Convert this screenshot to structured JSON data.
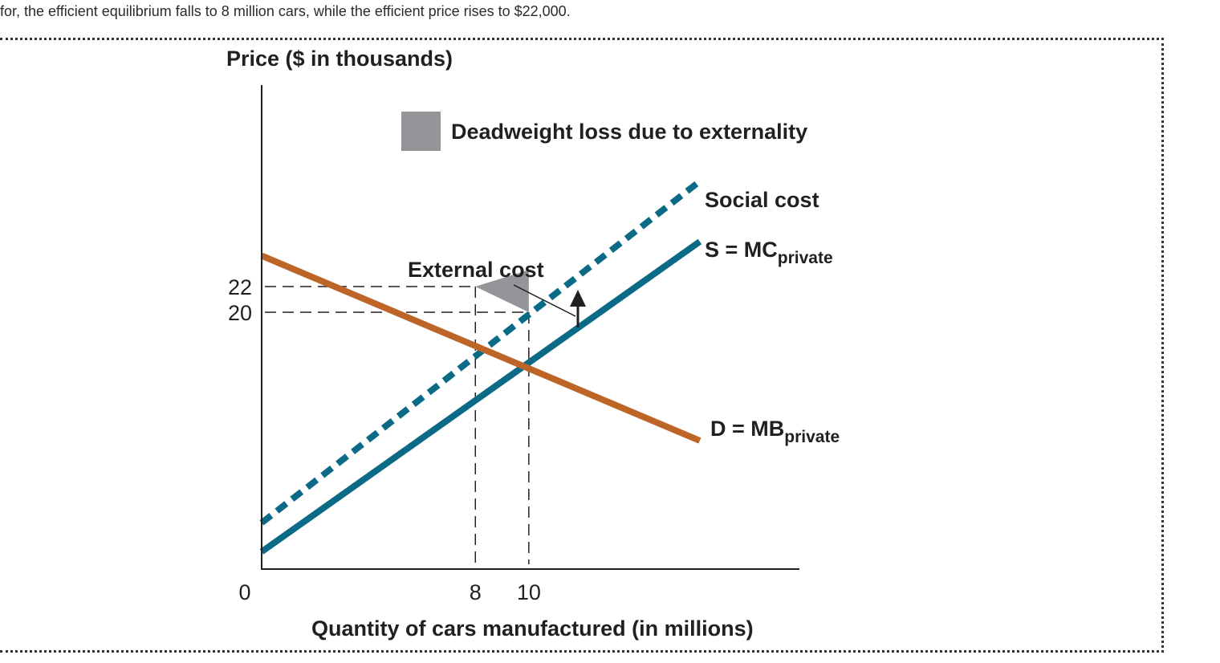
{
  "intro_text": "for, the efficient equilibrium falls to 8 million cars, while the efficient price rises to $22,000.",
  "colors": {
    "demand": "#bd6427",
    "supply": "#0b6b87",
    "deadweight": "#939598",
    "axis": "#231f20"
  },
  "chart_data": {
    "type": "line",
    "ylabel": "Price ($ in thousands)",
    "xlabel": "Quantity of cars manufactured (in millions)",
    "origin_label": "0",
    "x_ticks": [
      "8",
      "10"
    ],
    "y_ticks": [
      "22",
      "20"
    ],
    "xlim": [
      0,
      20.25
    ],
    "ylim": [
      0,
      37.5
    ],
    "legend": {
      "label": "Deadweight loss due to externality",
      "placement": "top"
    },
    "series": [
      {
        "name": "Social cost",
        "style": "dashed",
        "x": [
          0,
          16.4
        ],
        "y": [
          3.6,
          30.2
        ]
      },
      {
        "name": "S = MC",
        "subscript": "private",
        "style": "solid",
        "x": [
          0,
          16.4
        ],
        "y": [
          1.35,
          25.5
        ]
      },
      {
        "name": "D = MB",
        "subscript": "private",
        "style": "solid",
        "x": [
          0,
          16.4
        ],
        "y": [
          24.4,
          10.0
        ]
      }
    ],
    "deadweight_triangle": {
      "x": [
        8,
        10,
        10
      ],
      "y": [
        22,
        20,
        23.3
      ]
    },
    "annotations": [
      {
        "text": "External cost"
      }
    ],
    "reference_lines": [
      {
        "x": 8,
        "y": 22
      },
      {
        "x": 10,
        "y": 20
      }
    ]
  }
}
